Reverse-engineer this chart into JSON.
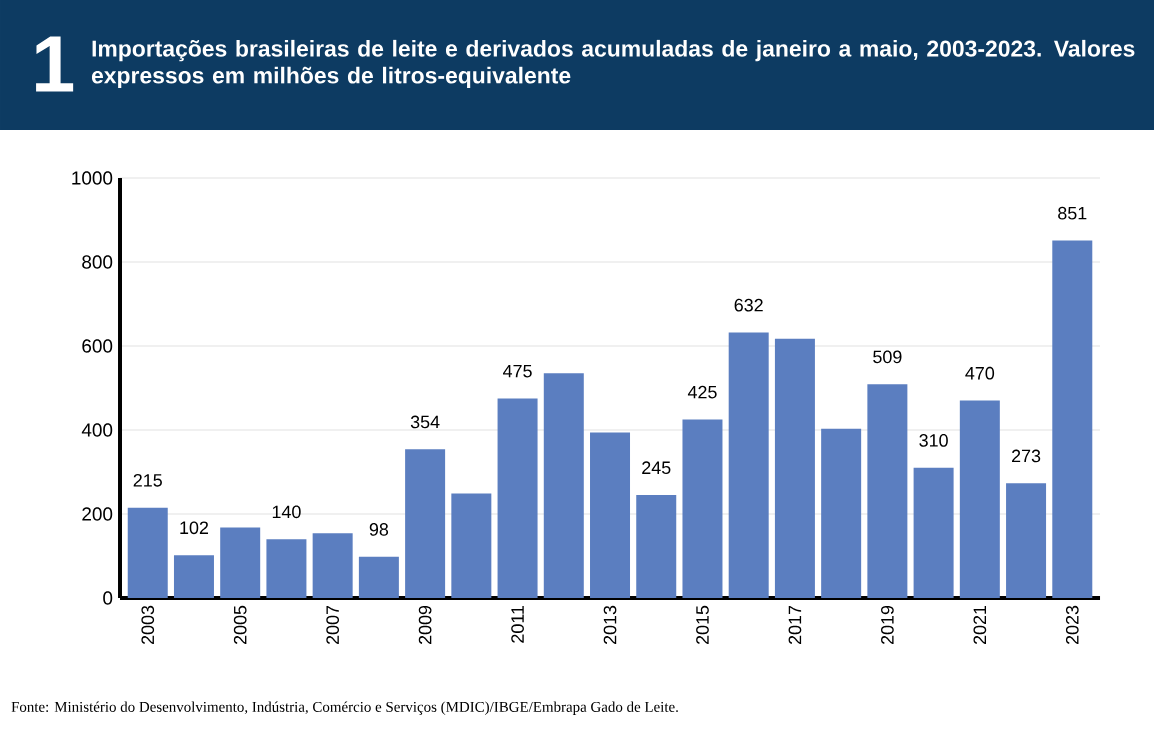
{
  "chart_data": {
    "type": "bar",
    "title": "Importações brasileiras de leite e derivados acumuladas de janeiro a maio, 2003-2023. Valores expressos em milhões de litros-equivalente",
    "categories": [
      "2003",
      null,
      "2005",
      null,
      "2007",
      null,
      "2009",
      null,
      "2011",
      null,
      "2013",
      null,
      "2015",
      null,
      "2017",
      null,
      "2019",
      null,
      "2021",
      null,
      "2023"
    ],
    "values": [
      215,
      102,
      168,
      140,
      154,
      98,
      354,
      249,
      475,
      535,
      394,
      245,
      425,
      632,
      617,
      403,
      509,
      310,
      470,
      273,
      851
    ],
    "value_labels": [
      "215",
      "102",
      null,
      "140",
      null,
      "98",
      "354",
      null,
      "475",
      null,
      null,
      "245",
      "425",
      "632",
      null,
      null,
      "509",
      "310",
      "470",
      "273",
      "851"
    ],
    "color": "#5b7ec0",
    "ylim": [
      0,
      1000
    ],
    "yticks": [
      0,
      200,
      400,
      600,
      800,
      1000
    ],
    "grid": "y",
    "annotations": [
      "1",
      "Fonte: Ministério do Desenvolvimento, Indústria, Comércio e Serviços (MDIC)/IBGE/Embrapa Gado de Leite."
    ]
  }
}
